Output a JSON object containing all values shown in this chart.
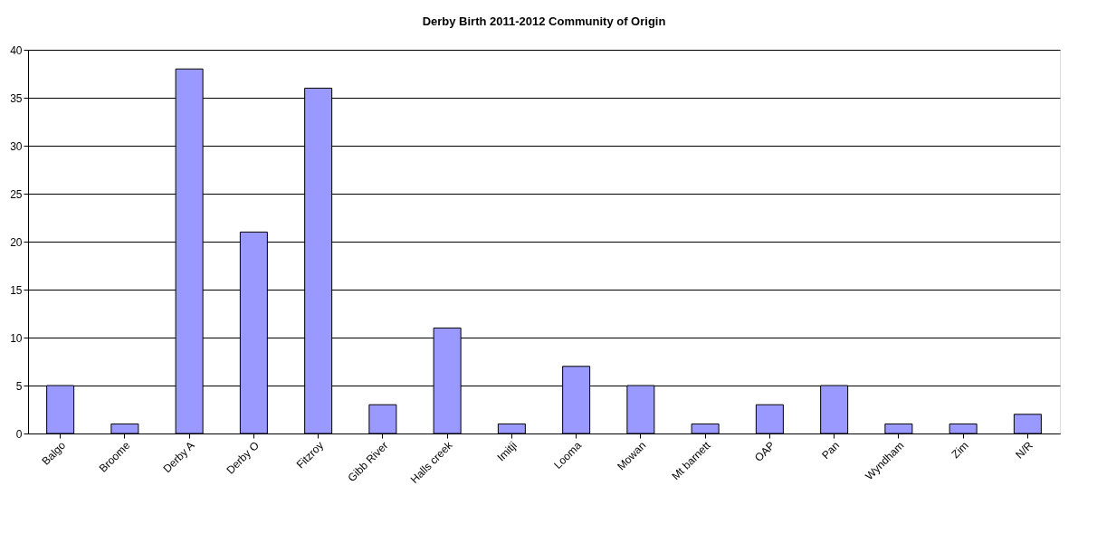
{
  "chart_data": {
    "type": "bar",
    "title": "Derby Birth 2011-2012 Community of Origin",
    "categories": [
      "Balgo",
      "Broome",
      "Derby A",
      "Derby O",
      "Fitzroy",
      "Gibb River",
      "Halls creek",
      "Imitji",
      "Looma",
      "Mowan",
      "Mt barnett",
      "OAP",
      "Pan",
      "Wyndham",
      "Zim",
      "N/R"
    ],
    "values": [
      5,
      1,
      38,
      21,
      36,
      3,
      11,
      1,
      7,
      5,
      1,
      3,
      5,
      1,
      1,
      2
    ],
    "color": "#9999ff",
    "ylim": [
      0,
      40
    ],
    "yticks": [
      0,
      5,
      10,
      15,
      20,
      25,
      30,
      35,
      40
    ],
    "grid": "y"
  }
}
